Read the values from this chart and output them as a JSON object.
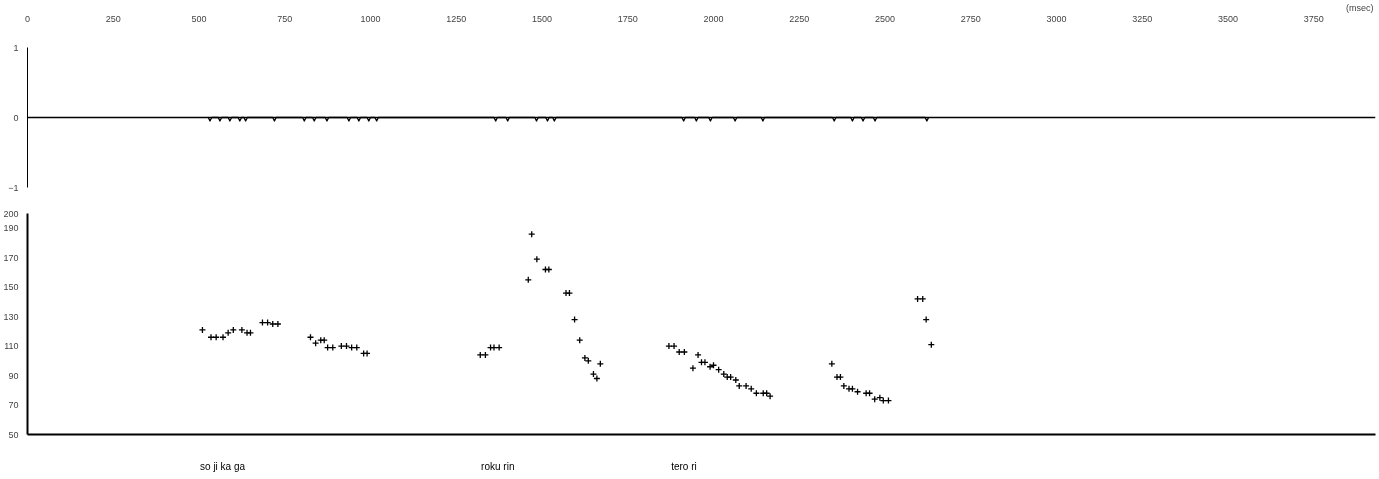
{
  "chart_data": [
    {
      "type": "line",
      "xlabel": "(msec)",
      "color": "#000000",
      "x": [
        527,
        532,
        537,
        556,
        561,
        566,
        585,
        590,
        595,
        614,
        619,
        624,
        631,
        636,
        641,
        715,
        720,
        725,
        802,
        807,
        812,
        831,
        836,
        841,
        868,
        873,
        878,
        932,
        937,
        942,
        961,
        966,
        971,
        990,
        995,
        1000,
        1013,
        1018,
        1023,
        1360,
        1365,
        1370,
        1395,
        1400,
        1405,
        1479,
        1484,
        1489,
        1511,
        1516,
        1521,
        1531,
        1536,
        1541,
        1908,
        1913,
        1918,
        1945,
        1950,
        1955,
        1986,
        1991,
        1996,
        2058,
        2063,
        2068,
        2139,
        2144,
        2149,
        2347,
        2352,
        2357,
        2400,
        2405,
        2410,
        2431,
        2436,
        2441,
        2466,
        2471,
        2476,
        2617,
        2622,
        2627
      ],
      "values": [
        0,
        -0.05,
        0,
        0,
        -0.05,
        0,
        0,
        -0.05,
        0,
        0,
        -0.05,
        0,
        0,
        -0.05,
        0,
        0,
        -0.05,
        0,
        0,
        -0.05,
        0,
        0,
        -0.05,
        0,
        0,
        -0.05,
        0,
        0,
        -0.05,
        0,
        0,
        -0.05,
        0,
        0,
        -0.05,
        0,
        0,
        -0.05,
        0,
        0,
        -0.05,
        0,
        0,
        -0.05,
        0,
        0,
        -0.05,
        0,
        0,
        -0.05,
        0,
        0,
        -0.05,
        0,
        0,
        -0.05,
        0,
        0,
        -0.05,
        0,
        0,
        -0.05,
        0,
        0,
        -0.05,
        0,
        0,
        -0.05,
        0,
        0,
        -0.05,
        0,
        0,
        -0.05,
        0,
        0,
        -0.05,
        0,
        0,
        -0.05,
        0,
        0,
        -0.05,
        0
      ],
      "ref_lines": [
        {
          "axis": "y",
          "value": 0,
          "color": "#000000"
        }
      ],
      "xlim": [
        0,
        3930
      ],
      "ylim": [
        -1,
        1
      ],
      "xticks": [
        0,
        250,
        500,
        750,
        1000,
        1250,
        1500,
        1750,
        2000,
        2250,
        2500,
        2750,
        3000,
        3250,
        3500,
        3750
      ],
      "yticks": [
        -1,
        0,
        1
      ]
    },
    {
      "type": "scatter",
      "color": "#000000",
      "marker": "cross",
      "x": [
        510,
        535,
        550,
        570,
        585,
        600,
        625,
        640,
        650,
        685,
        700,
        715,
        730,
        825,
        840,
        855,
        865,
        875,
        890,
        915,
        930,
        945,
        960,
        980,
        990,
        1320,
        1335,
        1350,
        1360,
        1375,
        1460,
        1470,
        1485,
        1510,
        1520,
        1570,
        1580,
        1595,
        1610,
        1625,
        1635,
        1650,
        1660,
        1670,
        1870,
        1885,
        1900,
        1915,
        1940,
        1955,
        1965,
        1975,
        1990,
        2000,
        2015,
        2030,
        2040,
        2050,
        2065,
        2075,
        2095,
        2110,
        2125,
        2145,
        2155,
        2165,
        2345,
        2360,
        2370,
        2380,
        2395,
        2405,
        2420,
        2445,
        2455,
        2470,
        2485,
        2495,
        2510,
        2595,
        2610,
        2620,
        2635
      ],
      "values": [
        121,
        116,
        116,
        116,
        119,
        121,
        121,
        119,
        119,
        126,
        126,
        125,
        125,
        116,
        112,
        114,
        114,
        109,
        109,
        110,
        110,
        109,
        109,
        105,
        105,
        104,
        104,
        109,
        109,
        109,
        155,
        186,
        169,
        162,
        162,
        146,
        146,
        128,
        114,
        102,
        100,
        91,
        88,
        98,
        110,
        110,
        106,
        106,
        95,
        104,
        99,
        99,
        96,
        97,
        94,
        91,
        89,
        89,
        87,
        83,
        83,
        81,
        78,
        78,
        78,
        76,
        98,
        89,
        89,
        83,
        81,
        81,
        79,
        78,
        78,
        74,
        75,
        73,
        73,
        142,
        142,
        128,
        111
      ],
      "xlim": [
        0,
        3930
      ],
      "ylim": [
        50,
        200
      ],
      "yticks": [
        50,
        70,
        90,
        110,
        130,
        150,
        170,
        190,
        200
      ],
      "tick_labels": "y",
      "annotations": [
        "so ji ka ga",
        "roku rin",
        "tero ri"
      ]
    }
  ]
}
